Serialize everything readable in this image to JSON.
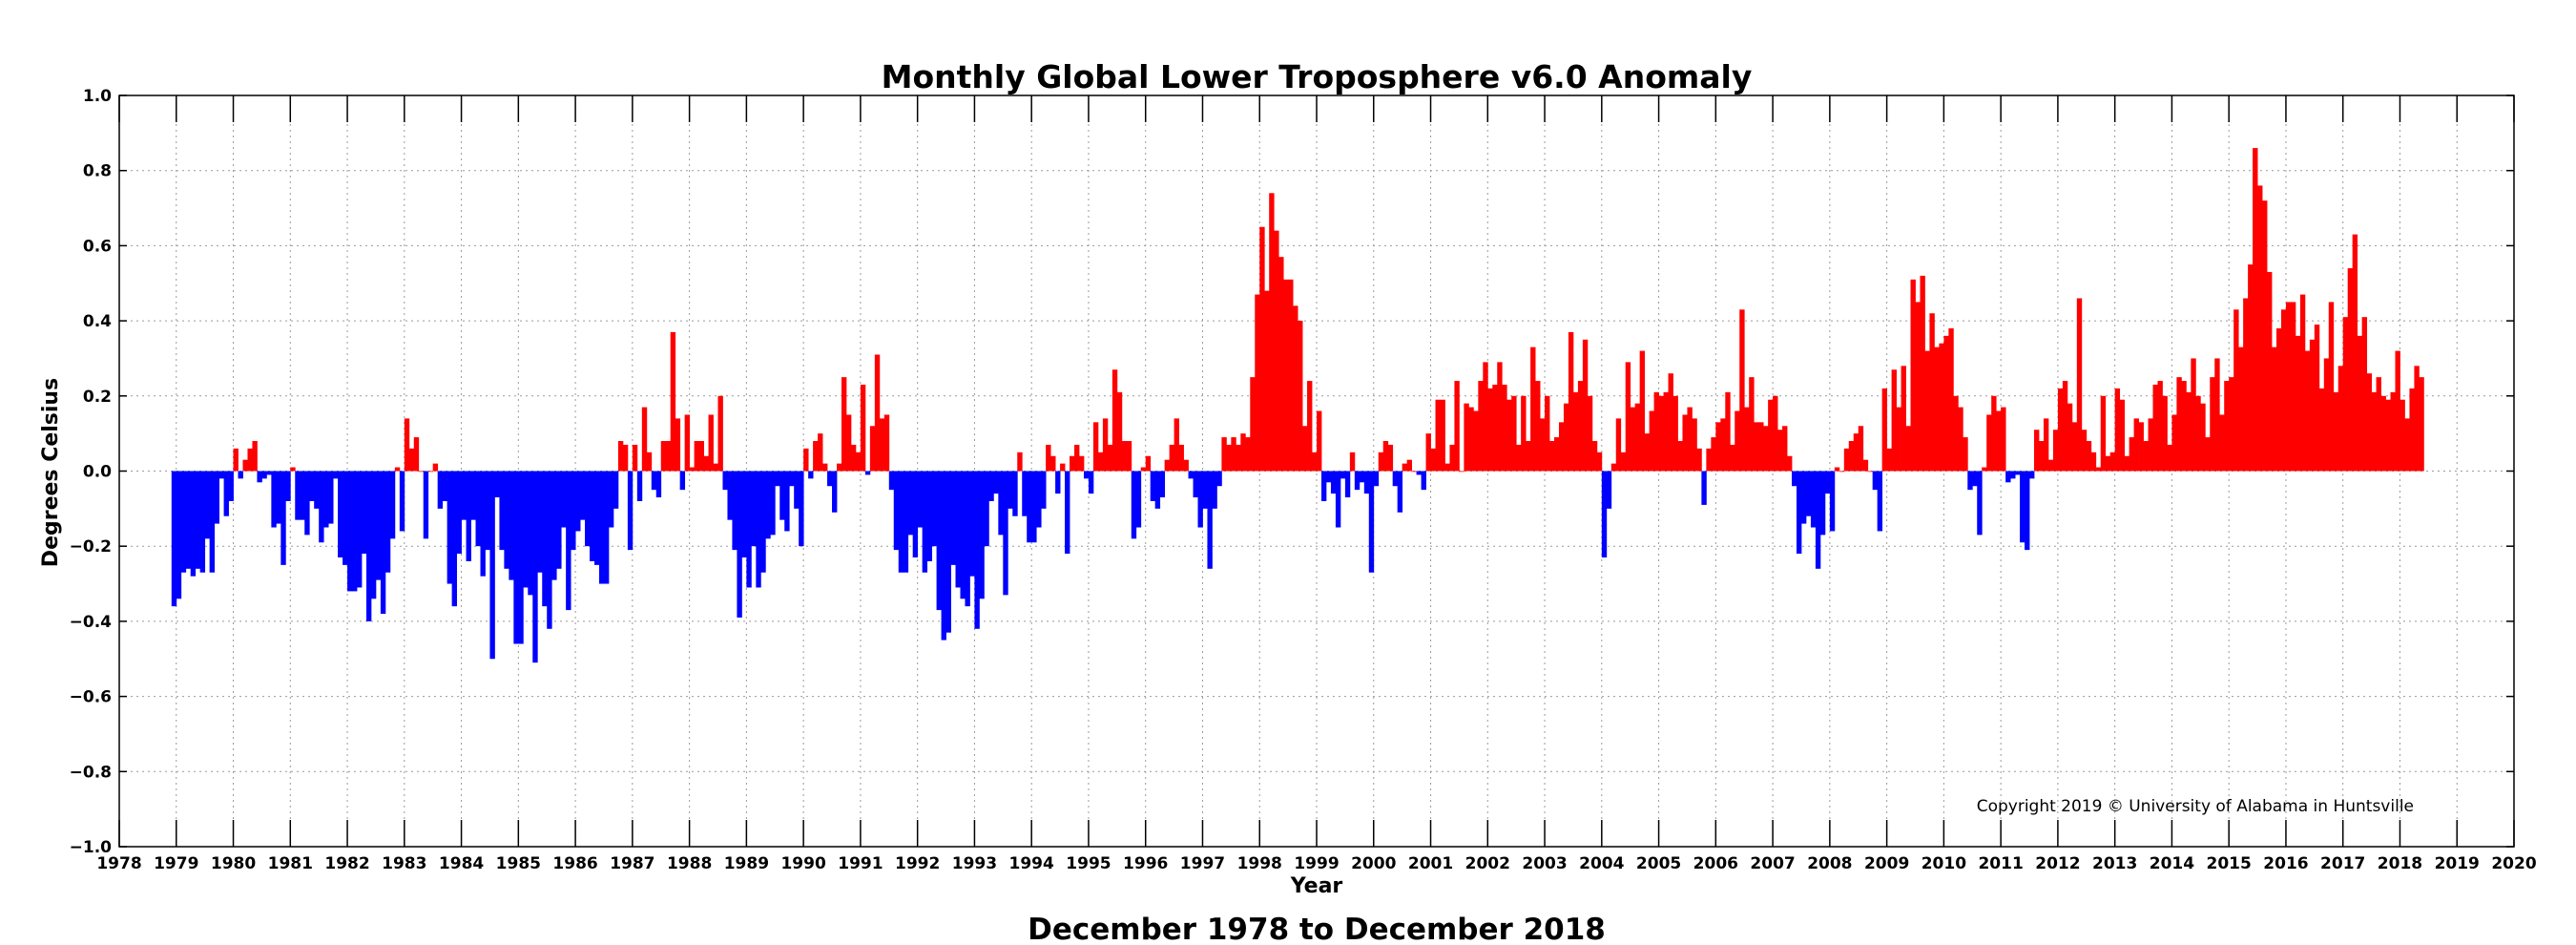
{
  "chart_data": {
    "type": "bar",
    "title": "Monthly Global Lower Troposphere v6.0 Anomaly",
    "subtitle": "December 1978 to December 2018",
    "xlabel": "Year",
    "ylabel": "Degrees Celsius",
    "copyright": "Copyright 2019 © University of Alabama in Huntsville",
    "x_tick_labels": [
      "1978",
      "1979",
      "1980",
      "1981",
      "1982",
      "1983",
      "1984",
      "1985",
      "1986",
      "1987",
      "1988",
      "1989",
      "1990",
      "1991",
      "1992",
      "1993",
      "1994",
      "1995",
      "1996",
      "1997",
      "1998",
      "1999",
      "2000",
      "2001",
      "2002",
      "2003",
      "2004",
      "2005",
      "2006",
      "2007",
      "2008",
      "2009",
      "2010",
      "2011",
      "2012",
      "2013",
      "2014",
      "2015",
      "2016",
      "2017",
      "2018",
      "2019",
      "2020"
    ],
    "y_tick_labels": [
      "−1.0",
      "−0.8",
      "−0.6",
      "−0.4",
      "−0.2",
      "0.0",
      "0.2",
      "0.4",
      "0.6",
      "0.8",
      "1.0"
    ],
    "ylim": [
      -1.0,
      1.0
    ],
    "xlim": [
      1978,
      2020
    ],
    "grid": true,
    "start": "1978-12",
    "end": "2018-12",
    "colors": {
      "positive": "#ff0000",
      "negative": "#0000ff"
    },
    "values": [
      -0.36,
      -0.34,
      -0.27,
      -0.26,
      -0.28,
      -0.26,
      -0.27,
      -0.18,
      -0.27,
      -0.14,
      -0.02,
      -0.12,
      -0.08,
      0.06,
      -0.02,
      0.03,
      0.06,
      0.08,
      -0.03,
      -0.02,
      -0.01,
      -0.15,
      -0.14,
      -0.25,
      -0.08,
      0.01,
      -0.13,
      -0.13,
      -0.17,
      -0.08,
      -0.1,
      -0.19,
      -0.15,
      -0.14,
      -0.02,
      -0.23,
      -0.25,
      -0.32,
      -0.32,
      -0.31,
      -0.22,
      -0.4,
      -0.34,
      -0.29,
      -0.38,
      -0.27,
      -0.18,
      0.01,
      -0.16,
      0.14,
      0.06,
      0.09,
      0.0,
      -0.18,
      0.0,
      0.02,
      -0.1,
      -0.08,
      -0.3,
      -0.36,
      -0.22,
      -0.13,
      -0.24,
      -0.13,
      -0.2,
      -0.28,
      -0.21,
      -0.5,
      -0.07,
      -0.21,
      -0.26,
      -0.29,
      -0.46,
      -0.46,
      -0.31,
      -0.33,
      -0.51,
      -0.27,
      -0.36,
      -0.42,
      -0.29,
      -0.26,
      -0.15,
      -0.37,
      -0.21,
      -0.16,
      -0.13,
      -0.2,
      -0.24,
      -0.25,
      -0.3,
      -0.3,
      -0.15,
      -0.1,
      0.08,
      0.07,
      -0.21,
      0.07,
      -0.08,
      0.17,
      0.05,
      -0.05,
      -0.07,
      0.08,
      0.08,
      0.37,
      0.14,
      -0.05,
      0.15,
      0.01,
      0.08,
      0.08,
      0.04,
      0.15,
      0.02,
      0.2,
      -0.05,
      -0.13,
      -0.21,
      -0.39,
      -0.23,
      -0.31,
      -0.2,
      -0.31,
      -0.27,
      -0.18,
      -0.17,
      -0.04,
      -0.13,
      -0.16,
      -0.04,
      -0.1,
      -0.2,
      0.06,
      -0.02,
      0.08,
      0.1,
      0.02,
      -0.04,
      -0.11,
      0.02,
      0.25,
      0.15,
      0.07,
      0.05,
      0.23,
      -0.01,
      0.12,
      0.31,
      0.14,
      0.15,
      -0.05,
      -0.21,
      -0.27,
      -0.27,
      -0.17,
      -0.23,
      -0.15,
      -0.27,
      -0.24,
      -0.2,
      -0.37,
      -0.45,
      -0.43,
      -0.25,
      -0.31,
      -0.34,
      -0.36,
      -0.28,
      -0.42,
      -0.34,
      -0.2,
      -0.08,
      -0.06,
      -0.17,
      -0.33,
      -0.1,
      -0.12,
      0.05,
      -0.12,
      -0.19,
      -0.19,
      -0.15,
      -0.1,
      0.07,
      0.04,
      -0.06,
      0.02,
      -0.22,
      0.04,
      0.07,
      0.04,
      -0.02,
      -0.06,
      0.13,
      0.05,
      0.14,
      0.07,
      0.27,
      0.21,
      0.08,
      0.08,
      -0.18,
      -0.15,
      0.01,
      0.04,
      -0.08,
      -0.1,
      -0.07,
      0.03,
      0.07,
      0.14,
      0.07,
      0.03,
      -0.02,
      -0.07,
      -0.15,
      -0.1,
      -0.26,
      -0.1,
      -0.04,
      0.09,
      0.07,
      0.09,
      0.07,
      0.1,
      0.09,
      0.25,
      0.47,
      0.65,
      0.48,
      0.74,
      0.64,
      0.57,
      0.51,
      0.51,
      0.44,
      0.4,
      0.12,
      0.24,
      0.05,
      0.16,
      -0.08,
      -0.03,
      -0.06,
      -0.15,
      -0.02,
      -0.07,
      0.05,
      -0.05,
      -0.03,
      -0.06,
      -0.27,
      -0.04,
      0.05,
      0.08,
      0.07,
      -0.04,
      -0.11,
      0.02,
      0.03,
      0.0,
      -0.01,
      -0.05,
      0.1,
      0.06,
      0.19,
      0.19,
      0.02,
      0.07,
      0.24,
      0.0,
      0.18,
      0.17,
      0.16,
      0.24,
      0.29,
      0.22,
      0.23,
      0.29,
      0.23,
      0.19,
      0.2,
      0.07,
      0.2,
      0.08,
      0.33,
      0.24,
      0.14,
      0.2,
      0.08,
      0.09,
      0.13,
      0.18,
      0.37,
      0.21,
      0.24,
      0.35,
      0.2,
      0.08,
      0.05,
      -0.23,
      -0.1,
      0.02,
      0.14,
      0.05,
      0.29,
      0.17,
      0.18,
      0.32,
      0.1,
      0.16,
      0.21,
      0.2,
      0.21,
      0.26,
      0.2,
      0.08,
      0.15,
      0.17,
      0.14,
      0.06,
      -0.09,
      0.06,
      0.09,
      0.13,
      0.14,
      0.21,
      0.07,
      0.16,
      0.43,
      0.17,
      0.25,
      0.13,
      0.13,
      0.12,
      0.19,
      0.2,
      0.11,
      0.12,
      0.04,
      -0.04,
      -0.22,
      -0.14,
      -0.12,
      -0.15,
      -0.26,
      -0.17,
      -0.06,
      -0.16,
      0.01,
      0.0,
      0.06,
      0.08,
      0.1,
      0.12,
      0.03,
      0.0,
      -0.05,
      -0.16,
      0.22,
      0.06,
      0.27,
      0.17,
      0.28,
      0.12,
      0.51,
      0.45,
      0.52,
      0.32,
      0.42,
      0.33,
      0.34,
      0.36,
      0.38,
      0.2,
      0.17,
      0.09,
      -0.05,
      -0.04,
      -0.17,
      0.01,
      0.15,
      0.2,
      0.16,
      0.17,
      -0.03,
      -0.02,
      -0.01,
      -0.19,
      -0.21,
      -0.02,
      0.11,
      0.08,
      0.14,
      0.03,
      0.11,
      0.22,
      0.24,
      0.18,
      0.13,
      0.46,
      0.11,
      0.08,
      0.05,
      0.01,
      0.2,
      0.04,
      0.05,
      0.22,
      0.19,
      0.04,
      0.09,
      0.14,
      0.13,
      0.08,
      0.14,
      0.23,
      0.24,
      0.2,
      0.07,
      0.15,
      0.25,
      0.24,
      0.21,
      0.3,
      0.2,
      0.18,
      0.09,
      0.25,
      0.3,
      0.15,
      0.24,
      0.25,
      0.43,
      0.33,
      0.46,
      0.55,
      0.86,
      0.76,
      0.72,
      0.53,
      0.33,
      0.38,
      0.43,
      0.45,
      0.45,
      0.36,
      0.47,
      0.32,
      0.35,
      0.39,
      0.22,
      0.3,
      0.45,
      0.21,
      0.28,
      0.41,
      0.54,
      0.63,
      0.36,
      0.41,
      0.26,
      0.21,
      0.25,
      0.2,
      0.19,
      0.21,
      0.32,
      0.19,
      0.14,
      0.22,
      0.28,
      0.25
    ]
  }
}
